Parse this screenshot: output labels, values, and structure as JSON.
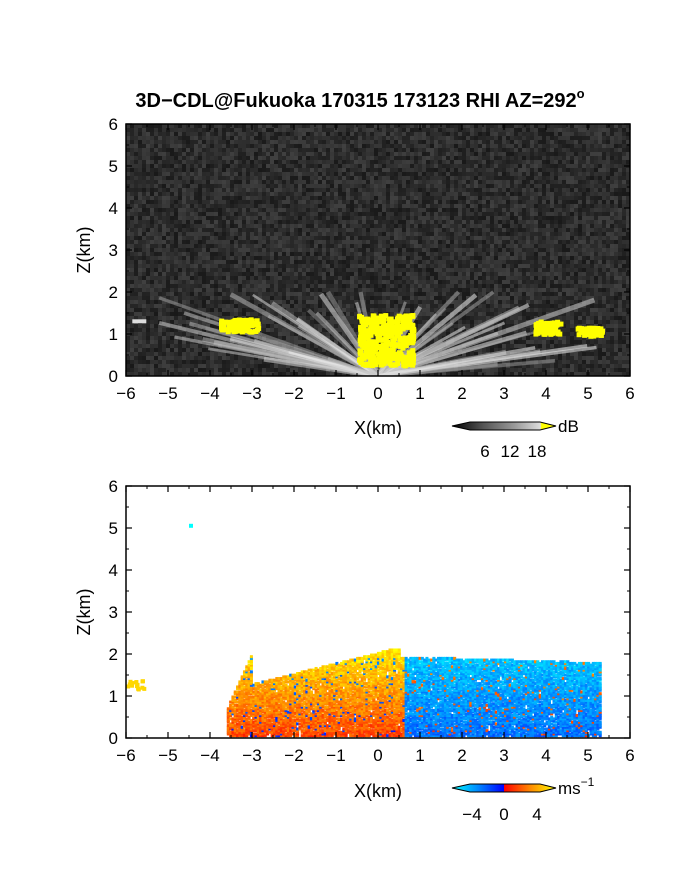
{
  "chart_data": [
    {
      "type": "heatmap",
      "title": "3D−CDL@Fukuoka 170315 173123 RHI AZ=292",
      "title_superscript": "o",
      "xlabel": "X(km)",
      "ylabel": "Z(km)",
      "xlim": [
        -6,
        6
      ],
      "ylim": [
        0,
        6
      ],
      "x_ticks": [
        "−6",
        "−5",
        "−4",
        "−3",
        "−2",
        "−1",
        "0",
        "1",
        "2",
        "3",
        "4",
        "5",
        "6"
      ],
      "y_ticks": [
        "0",
        "1",
        "2",
        "3",
        "4",
        "5",
        "6"
      ],
      "grid": false,
      "colorbar": {
        "label": "dB",
        "ticks": [
          "6",
          "12",
          "18"
        ],
        "range": [
          0,
          21
        ],
        "colormap": "grayscale_to_yellow",
        "colors": [
          "#000000",
          "#555555",
          "#999999",
          "#dddddd",
          "#ffff00"
        ]
      },
      "features": [
        {
          "description": "background noise",
          "z_range": [
            0,
            6
          ],
          "approx_dB": 2
        },
        {
          "description": "saturated echo over radar",
          "x_range": [
            -0.5,
            0.8
          ],
          "z_range": [
            0.3,
            1.5
          ],
          "approx_dB": 20
        },
        {
          "description": "echo patch",
          "x_range": [
            -3.8,
            -2.9
          ],
          "z_range": [
            1.1,
            1.4
          ],
          "approx_dB": 20
        },
        {
          "description": "echo patch",
          "x_range": [
            3.7,
            4.3
          ],
          "z_range": [
            1.05,
            1.35
          ],
          "approx_dB": 20
        },
        {
          "description": "echo patch",
          "x_range": [
            4.7,
            5.3
          ],
          "z_range": [
            1.0,
            1.2
          ],
          "approx_dB": 20
        },
        {
          "description": "aerosol layer top",
          "z": 2.0
        }
      ]
    },
    {
      "type": "heatmap",
      "xlabel": "X(km)",
      "ylabel": "Z(km)",
      "xlim": [
        -6,
        6
      ],
      "ylim": [
        0,
        6
      ],
      "x_ticks": [
        "−6",
        "−5",
        "−4",
        "−3",
        "−2",
        "−1",
        "0",
        "1",
        "2",
        "3",
        "4",
        "5",
        "6"
      ],
      "y_ticks": [
        "0",
        "1",
        "2",
        "3",
        "4",
        "5",
        "6"
      ],
      "grid": false,
      "colorbar": {
        "label": "ms",
        "label_superscript": "−1",
        "ticks": [
          "−4",
          "0",
          "4"
        ],
        "range": [
          -6,
          6
        ],
        "colormap": "cyan_blue_red_yellow",
        "colors": [
          "#00ffff",
          "#0088ff",
          "#0000ff",
          "#ff0000",
          "#ff8800",
          "#ffff00"
        ]
      },
      "features": [
        {
          "description": "negative velocity region",
          "x_range": [
            0.5,
            5.3
          ],
          "z_range": [
            0,
            1.9
          ],
          "approx_ms": -3
        },
        {
          "description": "positive velocity region",
          "x_range": [
            -3.5,
            0.6
          ],
          "z_range": [
            0,
            2.1
          ],
          "approx_ms": 3
        },
        {
          "description": "isolated point",
          "x": -4.5,
          "z": 5.1,
          "approx_ms": -6
        },
        {
          "description": "isolated patch",
          "x_range": [
            -6,
            -5.6
          ],
          "z_range": [
            1.2,
            1.4
          ],
          "approx_ms": 5
        }
      ]
    }
  ]
}
